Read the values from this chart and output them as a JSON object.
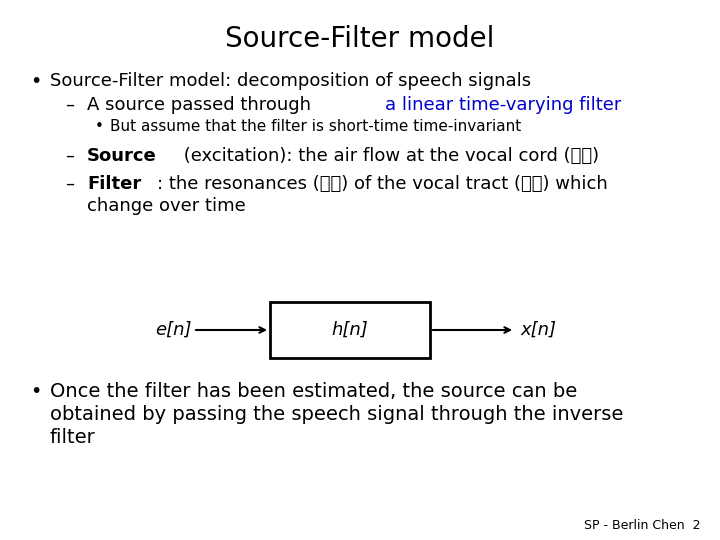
{
  "title": "Source-Filter model",
  "title_fontsize": 20,
  "background_color": "#ffffff",
  "text_color": "#000000",
  "blue_color": "#0000cc",
  "bullet1": "Source-Filter model: decomposition of speech signals",
  "dash1_black": "A source passed through ",
  "dash1_blue": "a linear time-varying filter",
  "sub1": "But assume that the filter is short-time time-invariant",
  "dash2_bold": "Source",
  "dash2_rest": " (excitation): the air flow at the vocal cord (聲帶)",
  "dash3_bold": "Filter",
  "dash3_rest1": ": the resonances (共鳴) of the vocal tract (聲道) which",
  "dash3_rest2": "change over time",
  "box_label": "h[n]",
  "left_label": "e[n]",
  "right_label": "x[n]",
  "bullet2_line1": "Once the filter has been estimated, the source can be",
  "bullet2_line2": "obtained by passing the speech signal through the inverse",
  "bullet2_line3": "filter",
  "footer": "SP - Berlin Chen  2",
  "fs_title": 20,
  "fs_bullet": 13,
  "fs_sub": 11,
  "fs_footer": 9
}
